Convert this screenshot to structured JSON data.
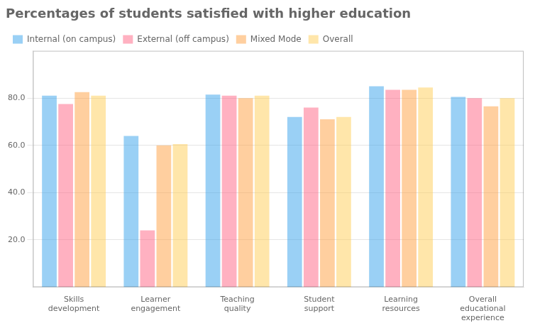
{
  "chart_data": {
    "type": "bar",
    "title": "Percentages of students satisfied with higher education",
    "categories": [
      "Skills\ndevelopment",
      "Learner\nengagement",
      "Teaching\nquality",
      "Student\nsupport",
      "Learning\nresources",
      "Overall\neducational\nexperience"
    ],
    "series": [
      {
        "name": "Internal (on campus)",
        "values": [
          81.0,
          64.0,
          81.5,
          72.0,
          85.0,
          80.5
        ]
      },
      {
        "name": "External (off campus)",
        "values": [
          77.5,
          24.0,
          81.0,
          76.0,
          83.5,
          80.0
        ]
      },
      {
        "name": "Mixed Mode",
        "values": [
          82.5,
          60.0,
          80.0,
          71.0,
          83.5,
          76.5
        ]
      },
      {
        "name": "Overall",
        "values": [
          81.0,
          60.5,
          81.0,
          72.0,
          84.5,
          80.0
        ]
      }
    ],
    "ylim": [
      0,
      100
    ],
    "yticks": [
      {
        "value": 20.0,
        "label": "20.0"
      },
      {
        "value": 40.0,
        "label": "40.0"
      },
      {
        "value": 60.0,
        "label": "60.0"
      },
      {
        "value": 80.0,
        "label": "80.0"
      }
    ],
    "grid": true,
    "legend": "top"
  }
}
